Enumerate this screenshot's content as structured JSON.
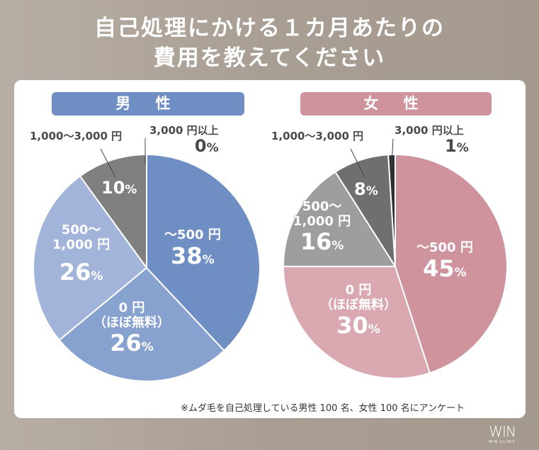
{
  "title_line1": "自己処理にかける１カ月あたりの",
  "title_line2": "費用を教えてください",
  "note": "※ムダ毛を自己処理している男性 100 名、女性 100 名にアンケート",
  "logo": {
    "main": "WIN",
    "sub": "WIN CLINIC"
  },
  "colors": {
    "male_header": "#6f8fc4",
    "female_header": "#cf939e",
    "background": "#aca297"
  },
  "chart_data": [
    {
      "type": "pie",
      "title": "男 性",
      "categories": [
        "～500 円",
        "0 円（ほぼ無料）",
        "500～1,000 円",
        "1,000～3,000 円",
        "3,000 円以上"
      ],
      "values": [
        38,
        26,
        26,
        10,
        0
      ],
      "colors": [
        "#6f8fc4",
        "#88a2d0",
        "#a2b4da",
        "#7f7f7f",
        "#333333"
      ],
      "labels": [
        {
          "name": "～500 円",
          "pct": "38"
        },
        {
          "name": "0 円",
          "sub": "（ほぼ無料）",
          "pct": "26"
        },
        {
          "name": "500～",
          "sub": "1,000 円",
          "pct": "26"
        },
        {
          "name": "1,000～3,000 円",
          "pct": "10"
        },
        {
          "name": "3,000 円以上",
          "pct": "0"
        }
      ]
    },
    {
      "type": "pie",
      "title": "女 性",
      "categories": [
        "～500 円",
        "0 円（ほぼ無料）",
        "500～1,000 円",
        "1,000～3,000 円",
        "3,000 円以上"
      ],
      "values": [
        45,
        30,
        16,
        8,
        1
      ],
      "colors": [
        "#cf939e",
        "#d9a8b0",
        "#9d9e9e",
        "#6f6f6f",
        "#2f2f2f"
      ],
      "labels": [
        {
          "name": "～500 円",
          "pct": "45"
        },
        {
          "name": "0 円",
          "sub": "（ほぼ無料）",
          "pct": "30"
        },
        {
          "name": "500～",
          "sub": "1,000 円",
          "pct": "16"
        },
        {
          "name": "1,000～3,000 円",
          "pct": "8"
        },
        {
          "name": "3,000 円以上",
          "pct": "1"
        }
      ]
    }
  ],
  "pct_sign": "%"
}
